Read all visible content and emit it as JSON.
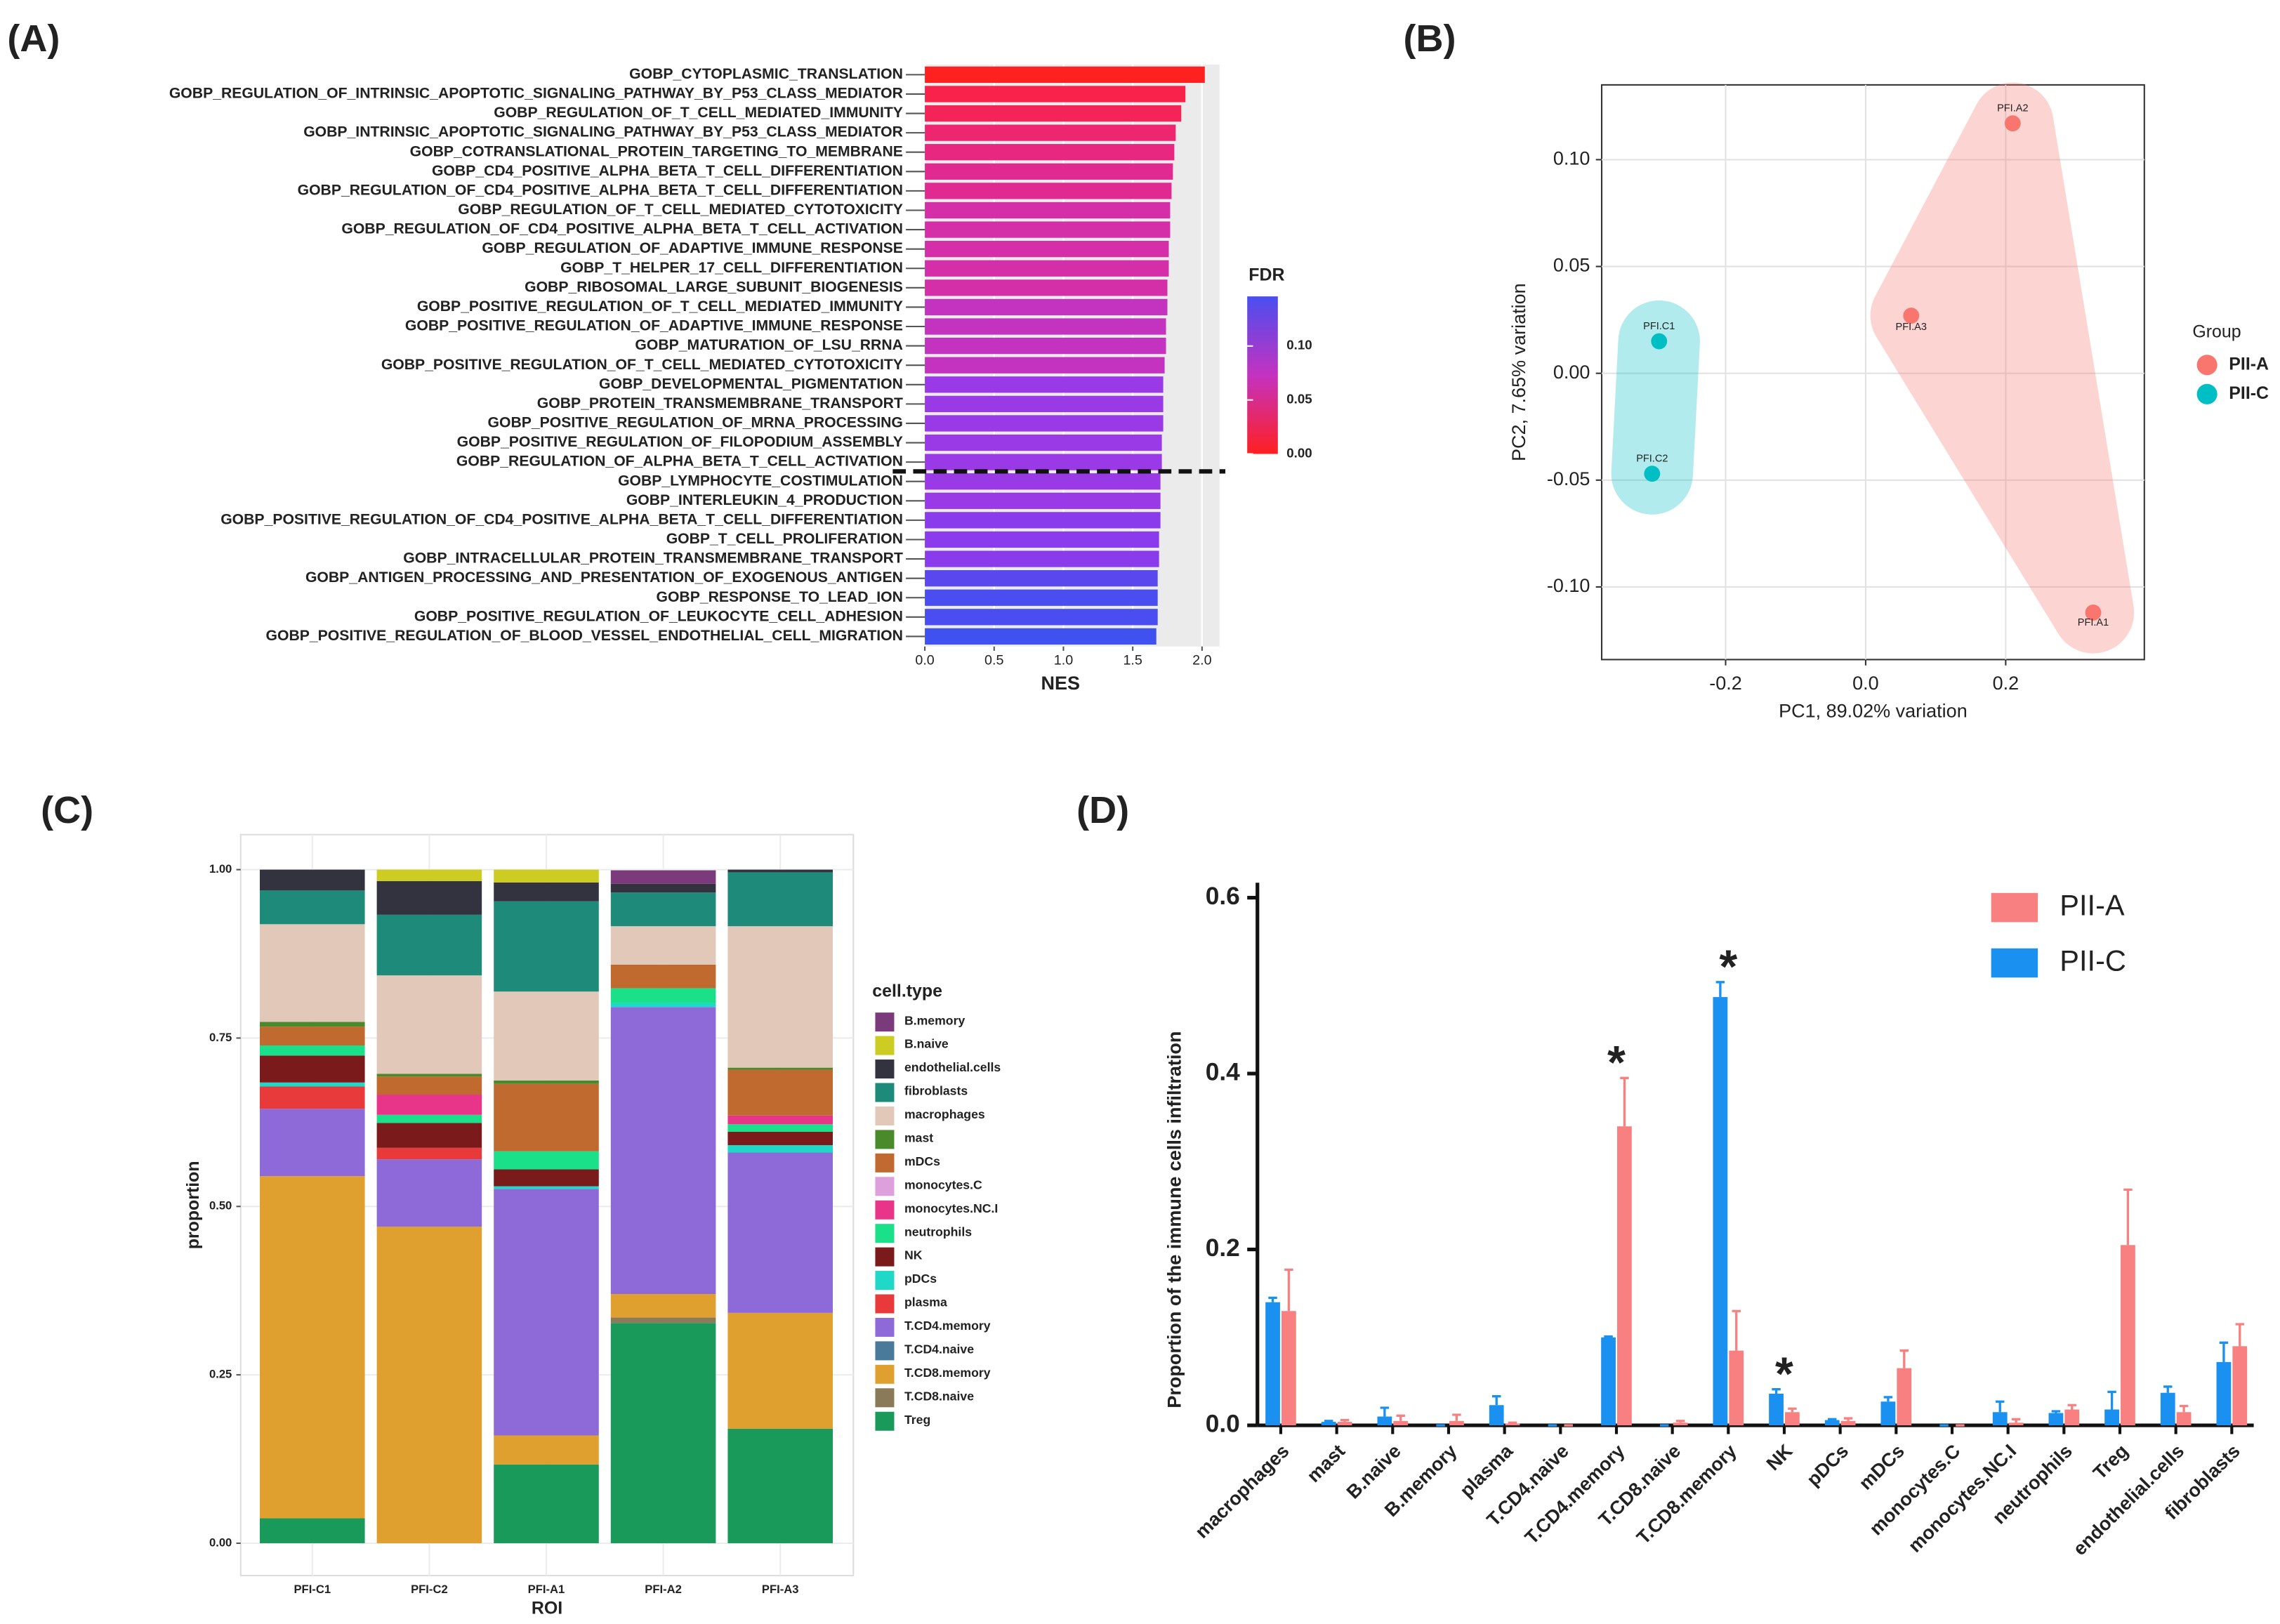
{
  "chart_data": [
    {
      "type": "hbar",
      "panel_label": "(A)",
      "x_label": "NES",
      "legend_title": "FDR",
      "categories": [
        "GOBP_CYTOPLASMIC_TRANSLATION",
        "GOBP_REGULATION_OF_INTRINSIC_APOPTOTIC_SIGNALING_PATHWAY_BY_P53_CLASS_MEDIATOR",
        "GOBP_REGULATION_OF_T_CELL_MEDIATED_IMMUNITY",
        "GOBP_INTRINSIC_APOPTOTIC_SIGNALING_PATHWAY_BY_P53_CLASS_MEDIATOR",
        "GOBP_COTRANSLATIONAL_PROTEIN_TARGETING_TO_MEMBRANE",
        "GOBP_CD4_POSITIVE_ALPHA_BETA_T_CELL_DIFFERENTIATION",
        "GOBP_REGULATION_OF_CD4_POSITIVE_ALPHA_BETA_T_CELL_DIFFERENTIATION",
        "GOBP_REGULATION_OF_T_CELL_MEDIATED_CYTOTOXICITY",
        "GOBP_REGULATION_OF_CD4_POSITIVE_ALPHA_BETA_T_CELL_ACTIVATION",
        "GOBP_REGULATION_OF_ADAPTIVE_IMMUNE_RESPONSE",
        "GOBP_T_HELPER_17_CELL_DIFFERENTIATION",
        "GOBP_RIBOSOMAL_LARGE_SUBUNIT_BIOGENESIS",
        "GOBP_POSITIVE_REGULATION_OF_T_CELL_MEDIATED_IMMUNITY",
        "GOBP_POSITIVE_REGULATION_OF_ADAPTIVE_IMMUNE_RESPONSE",
        "GOBP_MATURATION_OF_LSU_RRNA",
        "GOBP_POSITIVE_REGULATION_OF_T_CELL_MEDIATED_CYTOTOXICITY",
        "GOBP_DEVELOPMENTAL_PIGMENTATION",
        "GOBP_PROTEIN_TRANSMEMBRANE_TRANSPORT",
        "GOBP_POSITIVE_REGULATION_OF_MRNA_PROCESSING",
        "GOBP_POSITIVE_REGULATION_OF_FILOPODIUM_ASSEMBLY",
        "GOBP_REGULATION_OF_ALPHA_BETA_T_CELL_ACTIVATION",
        "GOBP_LYMPHOCYTE_COSTIMULATION",
        "GOBP_INTERLEUKIN_4_PRODUCTION",
        "GOBP_POSITIVE_REGULATION_OF_CD4_POSITIVE_ALPHA_BETA_T_CELL_DIFFERENTIATION",
        "GOBP_T_CELL_PROLIFERATION",
        "GOBP_INTRACELLULAR_PROTEIN_TRANSMEMBRANE_TRANSPORT",
        "GOBP_ANTIGEN_PROCESSING_AND_PRESENTATION_OF_EXOGENOUS_ANTIGEN",
        "GOBP_RESPONSE_TO_LEAD_ION",
        "GOBP_POSITIVE_REGULATION_OF_LEUKOCYTE_CELL_ADHESION",
        "GOBP_POSITIVE_REGULATION_OF_BLOOD_VESSEL_ENDOTHELIAL_CELL_MIGRATION"
      ],
      "values": [
        2.02,
        1.88,
        1.85,
        1.81,
        1.8,
        1.79,
        1.78,
        1.77,
        1.77,
        1.76,
        1.76,
        1.75,
        1.75,
        1.74,
        1.74,
        1.73,
        1.72,
        1.72,
        1.72,
        1.71,
        1.71,
        1.7,
        1.7,
        1.7,
        1.69,
        1.69,
        1.68,
        1.68,
        1.68,
        1.67
      ],
      "colors": [
        "#ff2020",
        "#f8224a",
        "#f52458",
        "#ee2670",
        "#e82880",
        "#e02a92",
        "#e02a92",
        "#d42ea8",
        "#d42ea8",
        "#d42ea8",
        "#d42ea8",
        "#d42ea8",
        "#c432c0",
        "#c432c0",
        "#c432c0",
        "#c432c0",
        "#9a3ae6",
        "#9a3ae6",
        "#9a3ae6",
        "#9a3ae6",
        "#9a3ae6",
        "#9a3ae6",
        "#9a3ae6",
        "#8a3cec",
        "#8a3cec",
        "#8a3cec",
        "#5a48ee",
        "#4a4ef0",
        "#4a4ef0",
        "#3f52f0"
      ],
      "xlim": [
        0,
        2.126
      ],
      "xticks": [
        {
          "value": 0,
          "label": "0.0"
        },
        0.5,
        {
          "value": 1,
          "label": "1.0"
        },
        1.5,
        {
          "value": 2,
          "label": "2.0"
        }
      ],
      "color_lim": [
        0,
        0.146
      ],
      "color_scale": [
        "#ff2020",
        "#c432c0",
        "#4a4ef0"
      ],
      "color_ticks": [
        {
          "value": 0,
          "label": "0.00"
        },
        0.05,
        {
          "value": 0.1,
          "label": "0.10"
        }
      ],
      "grid": true
    },
    {
      "type": "scatter",
      "panel_label": "(B)",
      "x_label": "PC1, 89.02% variation",
      "y_label": "PC2, 7.65% variation",
      "legend_title": "Group",
      "series": [
        {
          "name": "PII-A",
          "color": "#f8766d",
          "x": [
            0.21,
            0.065,
            0.325
          ],
          "values": [
            0.117,
            0.027,
            -0.112
          ],
          "labels": [
            "PFI.A2",
            "PFI.A3",
            "PFI.A1"
          ]
        },
        {
          "name": "PII-C",
          "color": "#00bfc4",
          "x": [
            -0.295,
            -0.305
          ],
          "values": [
            0.015,
            -0.047
          ],
          "labels": [
            "PFI.C1",
            "PFI.C2"
          ]
        }
      ],
      "xlim": [
        -0.377,
        0.398
      ],
      "ylim": [
        -0.134,
        0.135
      ],
      "xticks": [
        -0.2,
        {
          "value": 0,
          "label": "0.0"
        },
        0.2
      ],
      "yticks": [
        {
          "value": -0.1,
          "label": "-0.10"
        },
        -0.05,
        {
          "value": 0,
          "label": "0.00"
        },
        0.05,
        {
          "value": 0.1,
          "label": "0.10"
        }
      ],
      "grid": true
    },
    {
      "type": "stacked",
      "panel_label": "(C)",
      "x_label": "ROI",
      "y_label": "proportion",
      "legend_title": "cell.type",
      "categories": [
        "PFI-C1",
        "PFI-C2",
        "PFI-A1",
        "PFI-A2",
        "PFI-A3"
      ],
      "series": [
        {
          "name": "B.memory",
          "color": "#7b3a7b",
          "values": [
            0,
            0,
            0,
            0.02,
            0
          ]
        },
        {
          "name": "B.naive",
          "color": "#cccc22",
          "values": [
            0,
            0.017,
            0.019,
            0,
            0
          ]
        },
        {
          "name": "endothelial.cells",
          "color": "#333340",
          "values": [
            0.031,
            0.05,
            0.028,
            0.013,
            0.004
          ]
        },
        {
          "name": "fibroblasts",
          "color": "#1e8a7a",
          "values": [
            0.05,
            0.09,
            0.134,
            0.05,
            0.08
          ]
        },
        {
          "name": "macrophages",
          "color": "#e2c8b8",
          "values": [
            0.145,
            0.146,
            0.132,
            0.057,
            0.21
          ]
        },
        {
          "name": "mast",
          "color": "#4a8a2a",
          "values": [
            0.007,
            0.004,
            0.005,
            0,
            0.003
          ]
        },
        {
          "name": "mDCs",
          "color": "#c06a30",
          "values": [
            0.028,
            0.027,
            0.1,
            0.035,
            0.068
          ]
        },
        {
          "name": "monocytes.C",
          "color": "#dda0dd",
          "values": [
            0,
            0,
            0,
            0,
            0
          ]
        },
        {
          "name": "monocytes.NC.I",
          "color": "#e8358a",
          "values": [
            0,
            0.03,
            0,
            0,
            0.013
          ]
        },
        {
          "name": "neutrophils",
          "color": "#1ae08a",
          "values": [
            0.015,
            0.012,
            0.027,
            0.022,
            0.011
          ]
        },
        {
          "name": "NK",
          "color": "#7a1a1a",
          "values": [
            0.04,
            0.037,
            0.025,
            0,
            0.02
          ]
        },
        {
          "name": "pDCs",
          "color": "#20d8c8",
          "values": [
            0.006,
            0,
            0.004,
            0.006,
            0.011
          ]
        },
        {
          "name": "plasma",
          "color": "#e83a3a",
          "values": [
            0.033,
            0.017,
            0,
            0,
            0
          ]
        },
        {
          "name": "T.CD4.memory",
          "color": "#8e6ad8",
          "values": [
            0.1,
            0.1,
            0.366,
            0.426,
            0.238
          ]
        },
        {
          "name": "T.CD4.naive",
          "color": "#4a7a9a",
          "values": [
            0,
            0,
            0,
            0,
            0
          ]
        },
        {
          "name": "T.CD8.memory",
          "color": "#e0a030",
          "values": [
            0.508,
            0.47,
            0.043,
            0.035,
            0.172
          ]
        },
        {
          "name": "T.CD8.naive",
          "color": "#8a7a5a",
          "values": [
            0,
            0,
            0,
            0.008,
            0
          ]
        },
        {
          "name": "Treg",
          "color": "#1a9a5a",
          "values": [
            0.037,
            0,
            0.117,
            0.327,
            0.17
          ]
        }
      ],
      "ylim": [
        -0.048,
        1.052
      ],
      "yticks": [
        {
          "value": 0,
          "label": "0.00"
        },
        0.25,
        {
          "value": 0.5,
          "label": "0.50"
        },
        0.75,
        {
          "value": 1,
          "label": "1.00"
        }
      ],
      "grid": true
    },
    {
      "type": "grouped",
      "panel_label": "(D)",
      "y_label": "Proportion of the immune cells infiltration",
      "categories": [
        "macrophages",
        "mast",
        "B.naive",
        "B.memory",
        "plasma",
        "T.CD4.naive",
        "T.CD4.memory",
        "T.CD8.naive",
        "T.CD8.memory",
        "NK",
        "pDCs",
        "mDCs",
        "monocytes.C",
        "monocytes.NC.I",
        "neutrophils",
        "Treg",
        "endothelial.cells",
        "fibroblasts"
      ],
      "series": [
        {
          "name": "PII-C",
          "color": "#1a90f0",
          "values": [
            0.14,
            0.004,
            0.01,
            0,
            0.023,
            0,
            0.1,
            0,
            0.487,
            0.036,
            0.006,
            0.027,
            0,
            0.015,
            0.014,
            0.018,
            0.037,
            0.072
          ],
          "errors": [
            0.005,
            0.001,
            0.01,
            0,
            0.01,
            0,
            0.001,
            0,
            0.017,
            0.005,
            0.001,
            0.005,
            0,
            0.012,
            0.002,
            0.02,
            0.007,
            0.022
          ]
        },
        {
          "name": "PII-A",
          "color": "#f88080",
          "values": [
            0.13,
            0.004,
            0.005,
            0.005,
            0.002,
            0,
            0.34,
            0.003,
            0.085,
            0.015,
            0.005,
            0.065,
            0,
            0.003,
            0.018,
            0.205,
            0.015,
            0.09
          ],
          "errors": [
            0.047,
            0.002,
            0.006,
            0.007,
            0.001,
            0,
            0.055,
            0.002,
            0.045,
            0.004,
            0.003,
            0.02,
            0,
            0.004,
            0.005,
            0.063,
            0.007,
            0.025
          ]
        }
      ],
      "legend_order": [
        "PII-A",
        "PII-C"
      ],
      "annotations": [
        {
          "text": "*",
          "category": "T.CD4.memory"
        },
        {
          "text": "*",
          "category": "T.CD8.memory"
        },
        {
          "text": "*",
          "category": "NK"
        }
      ],
      "ylim": [
        0,
        0.617
      ],
      "yticks": [
        {
          "value": 0,
          "label": "0.0"
        },
        0.2,
        0.4,
        0.6
      ]
    }
  ]
}
